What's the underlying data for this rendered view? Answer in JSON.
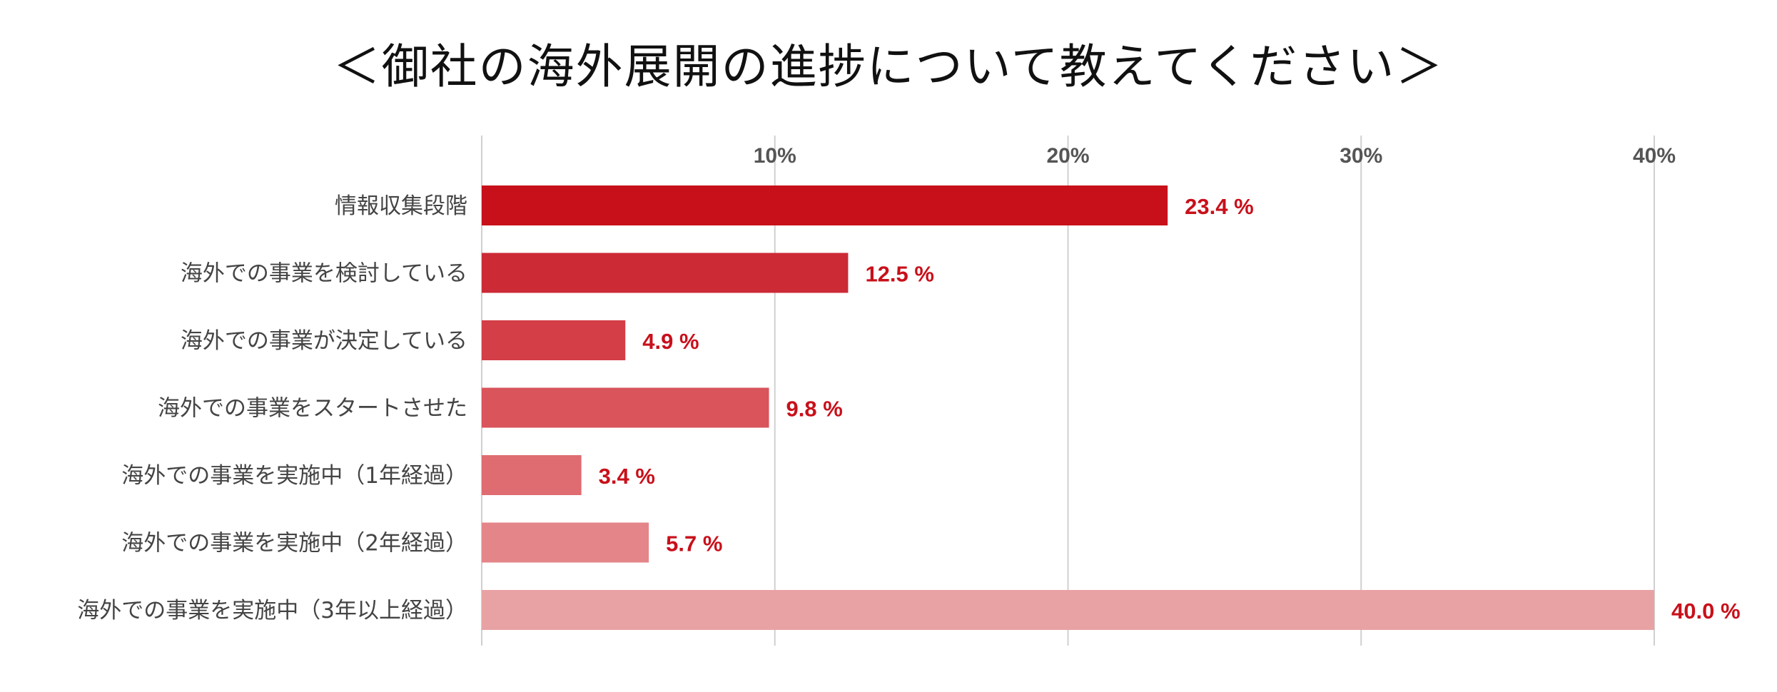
{
  "chart_data": {
    "type": "bar",
    "orientation": "horizontal",
    "title": "＜御社の海外展開の進捗について教えてください＞",
    "categories": [
      "情報収集段階",
      "海外での事業を検討している",
      "海外での事業が決定している",
      "海外での事業をスタートさせた",
      "海外での事業を実施中（1年経過）",
      "海外での事業を実施中（2年経過）",
      "海外での事業を実施中（3年以上経過）"
    ],
    "values": [
      23.4,
      12.5,
      4.9,
      9.8,
      3.4,
      5.7,
      40.0
    ],
    "value_labels": [
      "23.4 %",
      "12.5 %",
      "4.9 %",
      "9.8 %",
      "3.4 %",
      "5.7 %",
      "40.0 %"
    ],
    "xlim": [
      0,
      40
    ],
    "x_ticks": [
      10,
      20,
      30,
      40
    ],
    "x_tick_labels": [
      "10%",
      "20%",
      "30%",
      "40%"
    ],
    "x_axis_position": "top",
    "grid": true,
    "bar_colors": [
      "#c8101a",
      "#cc2a35",
      "#d33e47",
      "#d9545b",
      "#df6c71",
      "#e48689",
      "#e8a2a3"
    ],
    "label_color": "#c8101a",
    "xlabel": "",
    "ylabel": ""
  }
}
